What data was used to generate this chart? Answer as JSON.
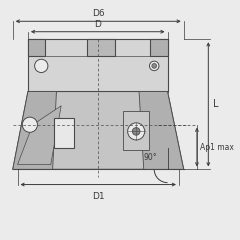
{
  "bg_color": "#ebebeb",
  "line_color": "#4a4a4a",
  "body_fill": "#c5c5c5",
  "body_light": "#d5d5d5",
  "body_dark": "#b0b0b0",
  "insert_fill": "#bebebe",
  "white_fill": "#e8e8e8",
  "dim_color": "#3a3a3a",
  "labels": {
    "D6": "D6",
    "D": "D",
    "D1": "D1",
    "L": "L",
    "Ap1max": "Ap1 max",
    "angle": "90°"
  },
  "figsize": [
    2.4,
    2.4
  ],
  "dpi": 100
}
